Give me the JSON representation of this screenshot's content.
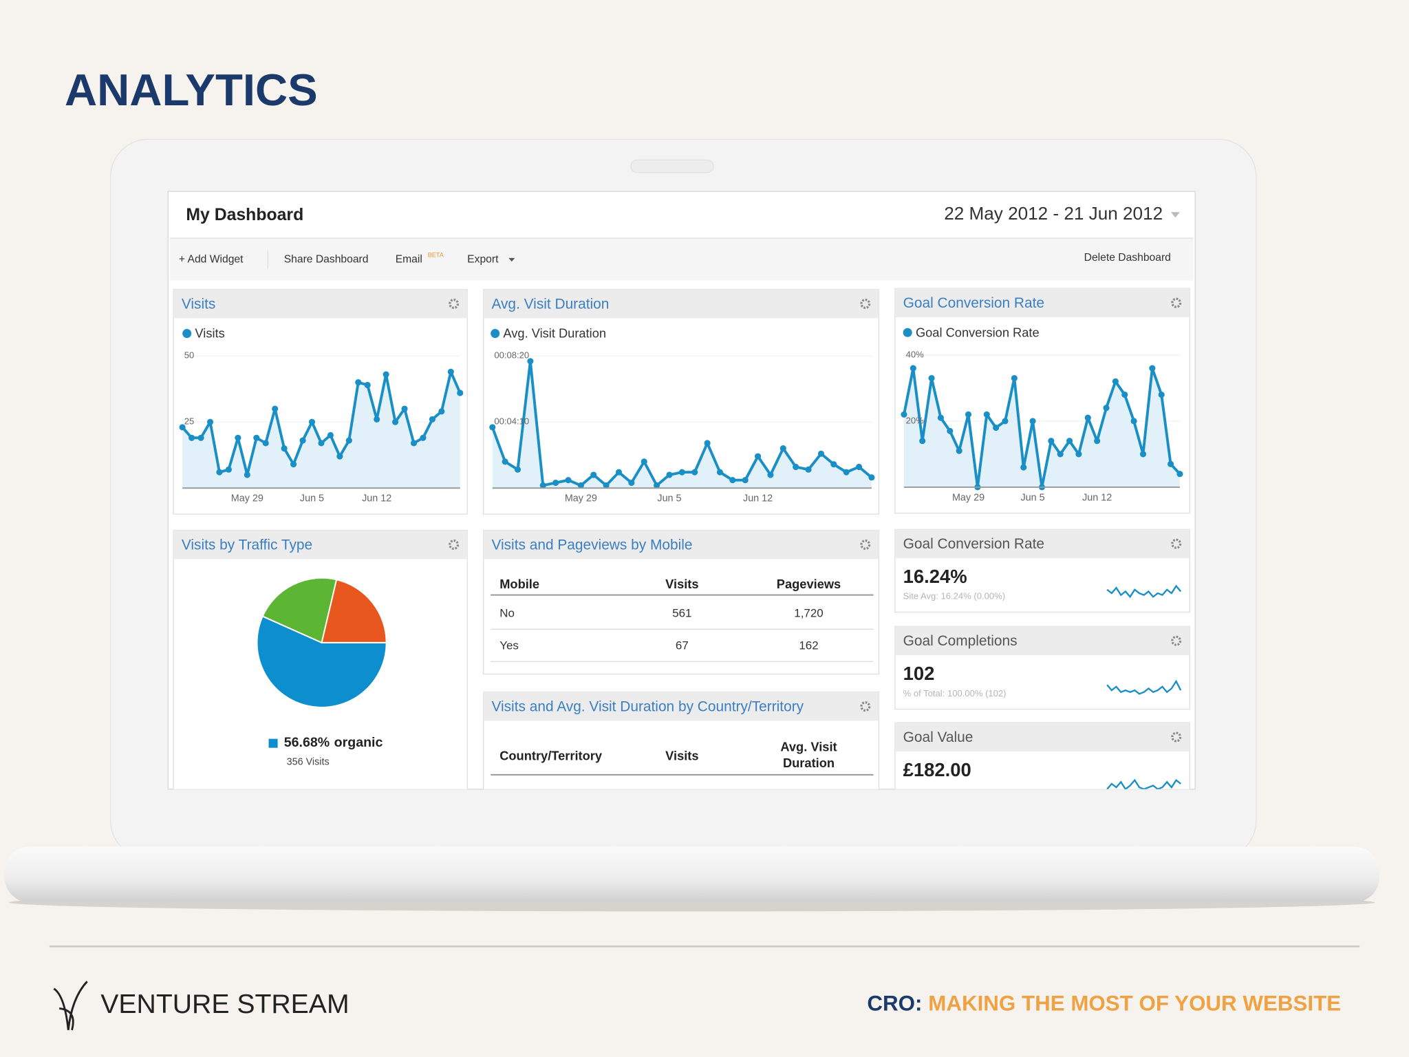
{
  "slide": {
    "title": "ANALYTICS",
    "footer": {
      "brand": "VENTURE STREAM",
      "tag_label": "CRO:",
      "tag_text": "MAKING THE MOST OF YOUR WEBSITE"
    }
  },
  "dashboard": {
    "title": "My Dashboard",
    "date_range": "22 May 2012 - 21 Jun 2012",
    "toolbar": [
      "+ Add Widget",
      "Share Dashboard",
      "Email",
      "Export"
    ],
    "beta_badge": "BETA",
    "delete": "Delete Dashboard",
    "mobile_table": {
      "title": "Visits and Pageviews by Mobile",
      "headers": [
        "Mobile",
        "Visits",
        "Pageviews"
      ],
      "rows": [
        [
          "No",
          "561",
          "1,720"
        ],
        [
          "Yes",
          "67",
          "162"
        ]
      ]
    },
    "country_table": {
      "title": "Visits and Avg. Visit Duration by Country/Territory",
      "headers": [
        "Country/Territory",
        "Visits",
        [
          "Avg. Visit",
          "Duration"
        ]
      ]
    },
    "goals": [
      {
        "title": "Goal Conversion Rate",
        "value": "16.24%",
        "detail": "Site Avg: 16.24% (0.00%)"
      },
      {
        "title": "Goal Completions",
        "value": "102",
        "detail": "% of Total: 100.00% (102)"
      },
      {
        "title": "Goal Value",
        "value": "£182.00"
      }
    ]
  },
  "chart_data": [
    {
      "type": "line",
      "title": "Visits",
      "categories": [
        null,
        null,
        null,
        null,
        null,
        null,
        null,
        "May 29",
        null,
        null,
        null,
        null,
        null,
        null,
        "Jun 5",
        null,
        null,
        null,
        null,
        null,
        null,
        "Jun 12",
        null,
        null,
        null,
        null,
        null,
        null,
        null,
        null,
        null
      ],
      "series": [
        {
          "name": "Visits",
          "color": "#1a8fc6",
          "values": [
            23,
            19,
            19,
            25,
            6,
            7,
            19,
            5,
            19,
            17,
            30,
            15,
            9,
            18,
            25,
            17,
            20,
            12,
            18,
            40,
            39,
            26,
            43,
            25,
            30,
            17,
            19,
            26,
            29,
            44,
            36
          ]
        }
      ],
      "ylim": [
        0,
        50
      ],
      "yticks": [
        25,
        50
      ]
    },
    {
      "type": "line",
      "title": "Avg. Visit Duration",
      "categories": [
        null,
        null,
        null,
        null,
        null,
        null,
        null,
        "May 29",
        null,
        null,
        null,
        null,
        null,
        null,
        "Jun 5",
        null,
        null,
        null,
        null,
        null,
        null,
        "Jun 12",
        null,
        null,
        null,
        null,
        null,
        null,
        null,
        null,
        null
      ],
      "series": [
        {
          "name": "Avg. Visit Duration",
          "color": "#1a8fc6",
          "values": [
            230,
            100,
            70,
            480,
            10,
            20,
            30,
            10,
            50,
            10,
            60,
            20,
            100,
            10,
            50,
            60,
            60,
            170,
            60,
            30,
            30,
            120,
            50,
            150,
            80,
            70,
            130,
            90,
            60,
            80,
            40
          ]
        }
      ],
      "ylim": [
        0,
        500
      ],
      "yticks": [
        {
          "value": 250,
          "label": "00:04:10"
        },
        {
          "value": 500,
          "label": "00:08:20"
        }
      ]
    },
    {
      "type": "line",
      "title": "Goal Conversion Rate",
      "categories": [
        null,
        null,
        null,
        null,
        null,
        null,
        null,
        "May 29",
        null,
        null,
        null,
        null,
        null,
        null,
        "Jun 5",
        null,
        null,
        null,
        null,
        null,
        null,
        "Jun 12",
        null,
        null,
        null,
        null,
        null,
        null,
        null,
        null,
        null
      ],
      "series": [
        {
          "name": "Goal Conversion Rate",
          "color": "#1a8fc6",
          "values": [
            22,
            36,
            14,
            33,
            21,
            17,
            11,
            22,
            0,
            22,
            18,
            20,
            33,
            6,
            20,
            0,
            14,
            10,
            14,
            10,
            21,
            14,
            24,
            32,
            28,
            20,
            10,
            36,
            28,
            7,
            4
          ]
        }
      ],
      "ylim": [
        0,
        40
      ],
      "yticks": [
        {
          "value": 20,
          "label": "20%"
        },
        {
          "value": 40,
          "label": "40%"
        }
      ]
    },
    {
      "type": "pie",
      "title": "Visits by Traffic Type",
      "categories": [
        "organic",
        null,
        null
      ],
      "values": [
        56.68,
        22,
        21.32
      ],
      "value_labels": [
        "56.68%",
        null,
        null
      ],
      "colors": [
        "#0d8ecf",
        "#5db534",
        "#e8571e"
      ],
      "note": "356 Visits"
    },
    {
      "type": "sparkline",
      "color": "#1a8fc6",
      "ylim": [
        0,
        10
      ],
      "values": [
        6,
        4,
        7,
        3,
        5,
        2,
        6,
        4,
        3,
        5,
        2,
        4,
        3,
        6,
        4,
        8,
        5
      ]
    },
    {
      "type": "sparkline",
      "color": "#1a8fc6",
      "ylim": [
        0,
        10
      ],
      "values": [
        7,
        4,
        6,
        3,
        4,
        3,
        4,
        2,
        3,
        5,
        3,
        4,
        6,
        3,
        5,
        9,
        4
      ]
    },
    {
      "type": "sparkline",
      "color": "#1a8fc6",
      "ylim": [
        0,
        10
      ],
      "values": [
        2,
        5,
        3,
        6,
        2,
        4,
        7,
        3,
        2,
        3,
        4,
        2,
        3,
        6,
        3,
        7,
        5
      ]
    }
  ]
}
